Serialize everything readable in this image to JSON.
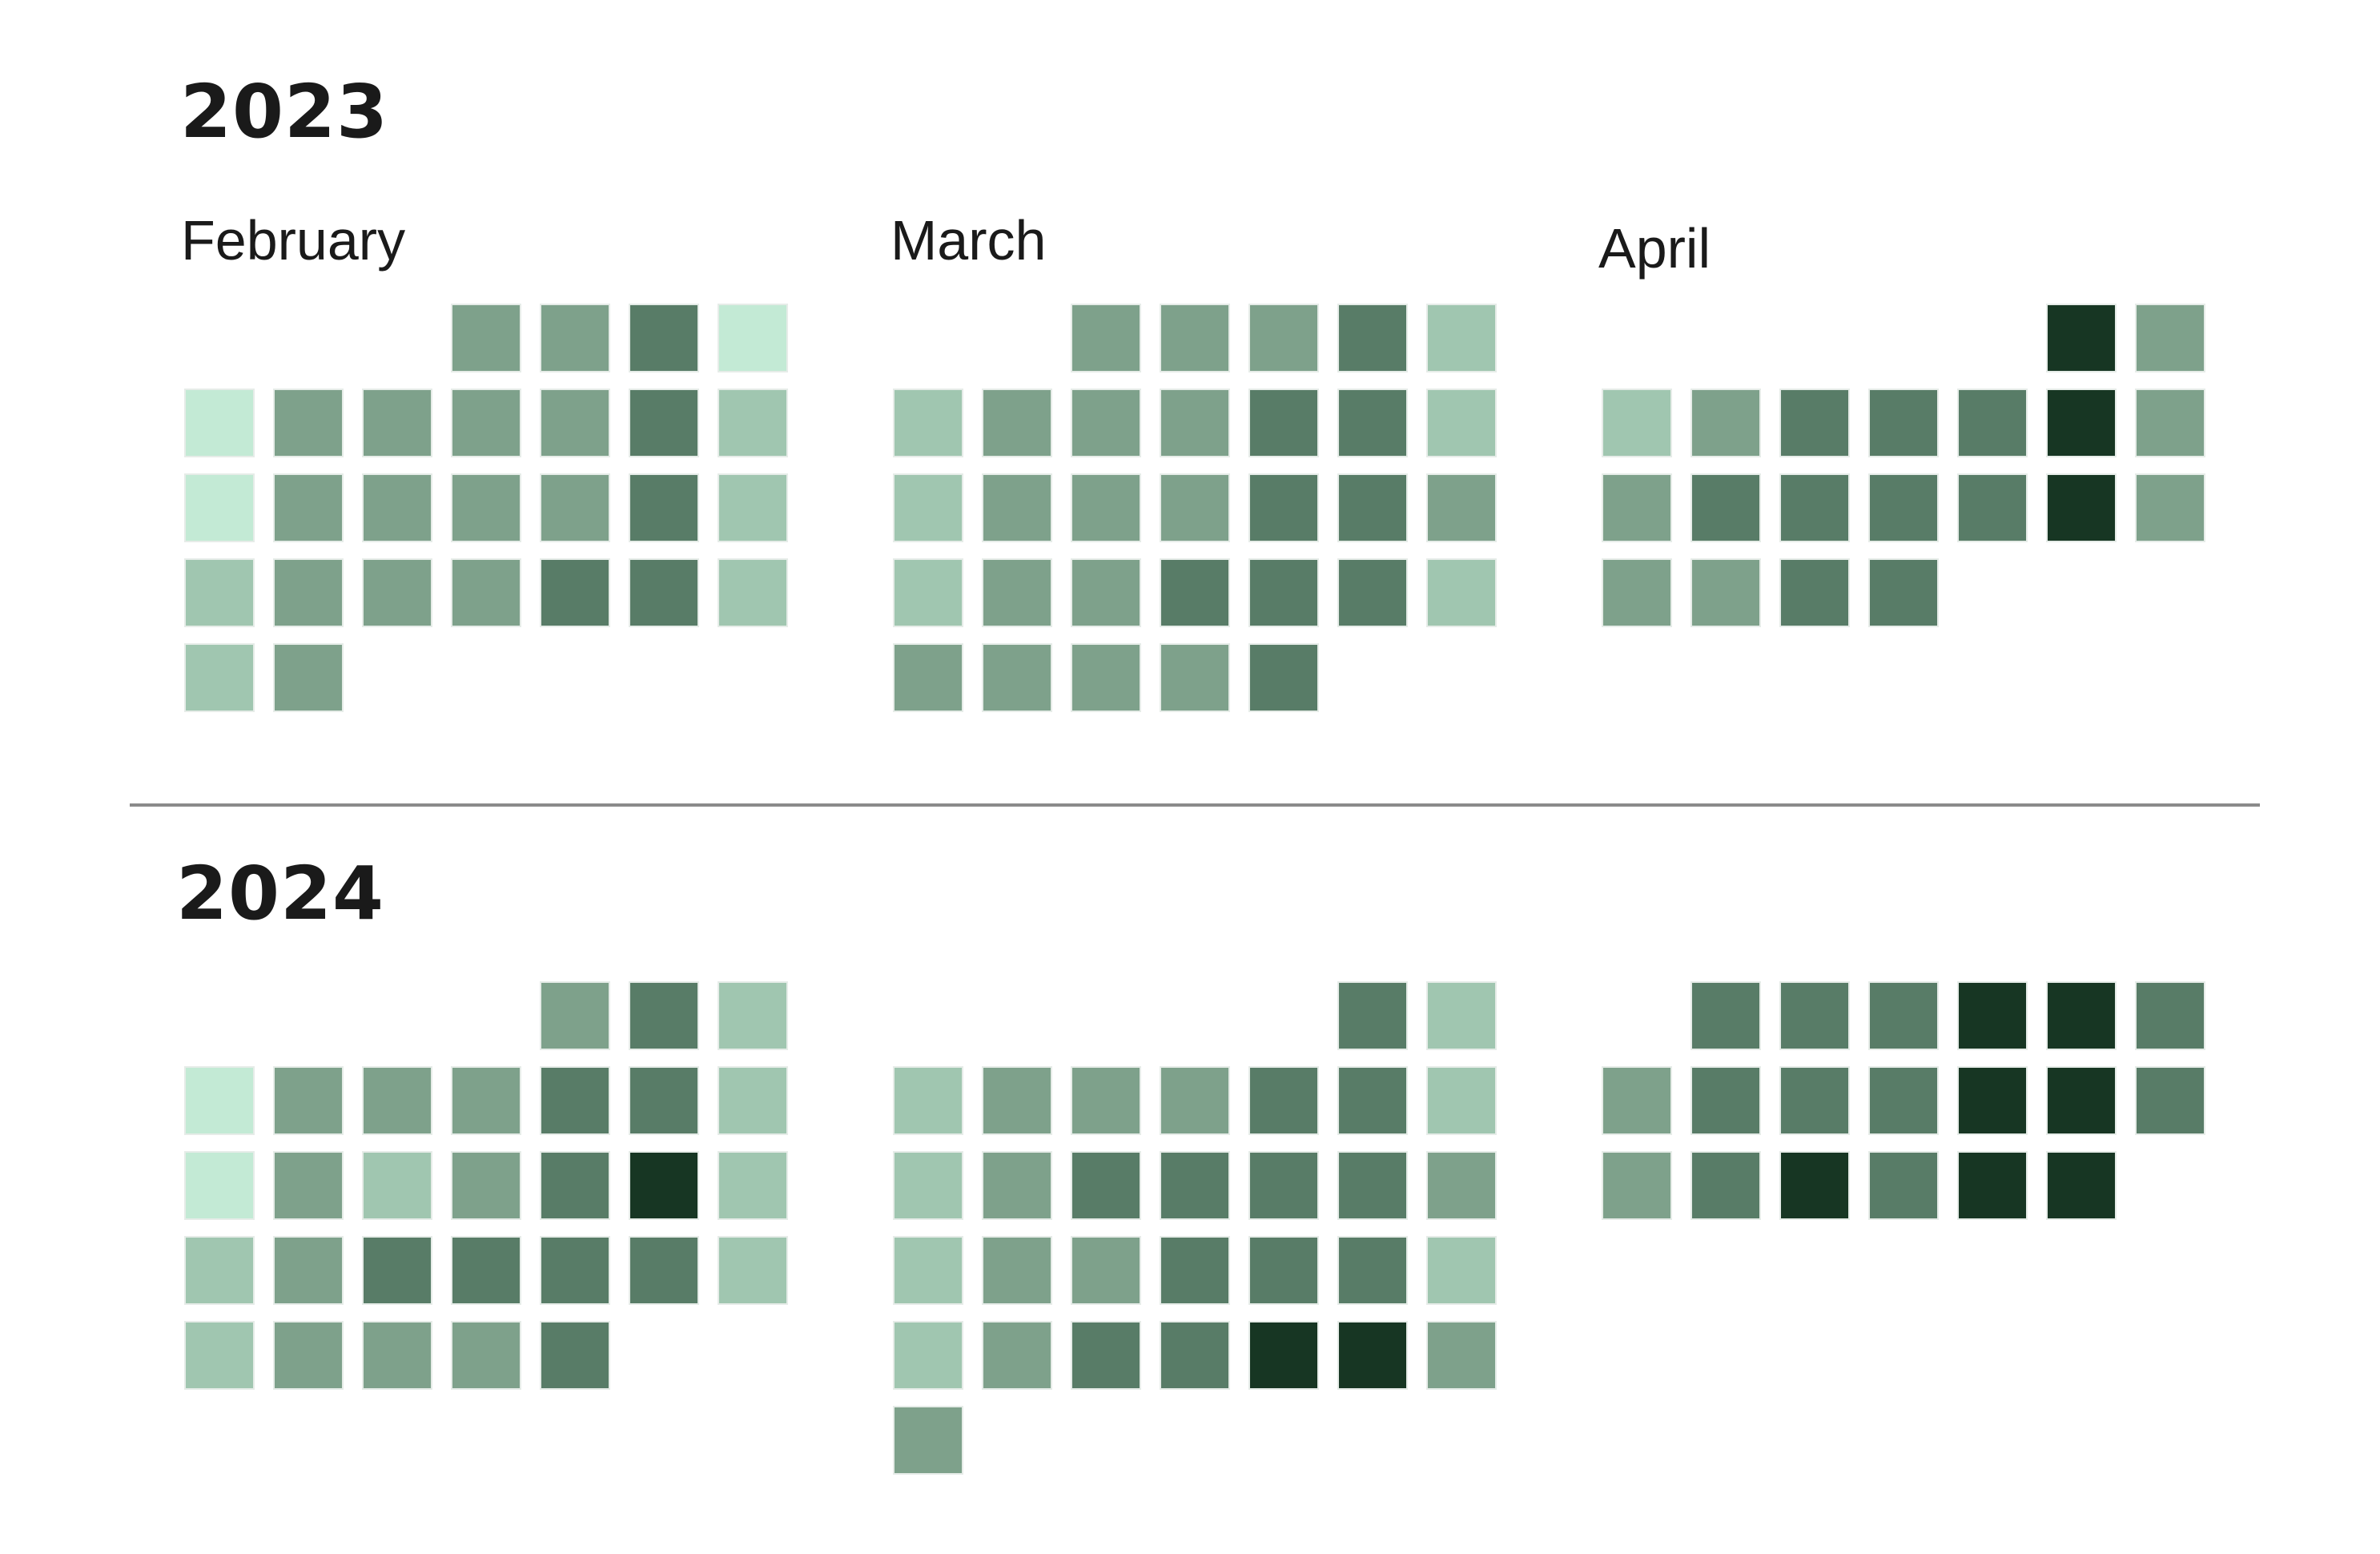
{
  "chart_data": {
    "type": "heatmap",
    "layout": "calendar",
    "weekday_columns": 7,
    "color_scale": [
      "#c3ead5",
      "#a0c6b0",
      "#7ea18b",
      "#587c67",
      "#173623"
    ],
    "years": [
      {
        "year": "2023",
        "months": [
          {
            "name": "February",
            "first_column": 3,
            "levels": [
              2,
              2,
              3,
              0,
              0,
              2,
              2,
              2,
              2,
              3,
              1,
              0,
              2,
              2,
              2,
              2,
              3,
              1,
              1,
              2,
              2,
              2,
              3,
              3,
              1,
              1,
              2
            ]
          },
          {
            "name": "March",
            "first_column": 2,
            "levels": [
              2,
              2,
              2,
              3,
              1,
              1,
              2,
              2,
              2,
              3,
              3,
              1,
              1,
              2,
              2,
              2,
              3,
              3,
              2,
              1,
              2,
              2,
              3,
              3,
              3,
              1,
              2,
              2,
              2,
              2,
              3
            ]
          },
          {
            "name": "April",
            "first_column": 5,
            "levels": [
              4,
              2,
              1,
              2,
              3,
              3,
              3,
              4,
              2,
              2,
              3,
              3,
              3,
              3,
              4,
              2,
              2,
              2,
              3,
              3
            ]
          }
        ]
      },
      {
        "year": "2024",
        "months": [
          {
            "name": "",
            "first_column": 4,
            "levels": [
              2,
              3,
              1,
              0,
              2,
              2,
              2,
              3,
              3,
              1,
              0,
              2,
              1,
              2,
              3,
              4,
              1,
              1,
              2,
              3,
              3,
              3,
              3,
              1,
              1,
              2,
              2,
              2,
              3
            ]
          },
          {
            "name": "",
            "first_column": 5,
            "levels": [
              3,
              1,
              1,
              2,
              2,
              2,
              3,
              3,
              1,
              1,
              2,
              3,
              3,
              3,
              3,
              2,
              1,
              2,
              2,
              3,
              3,
              3,
              1,
              1,
              2,
              3,
              3,
              4,
              4,
              2,
              2
            ]
          },
          {
            "name": "",
            "first_column": 1,
            "levels": [
              3,
              3,
              3,
              4,
              4,
              3,
              2,
              3,
              3,
              3,
              4,
              4,
              3,
              2,
              3,
              4,
              3,
              4,
              4
            ]
          }
        ]
      }
    ]
  }
}
